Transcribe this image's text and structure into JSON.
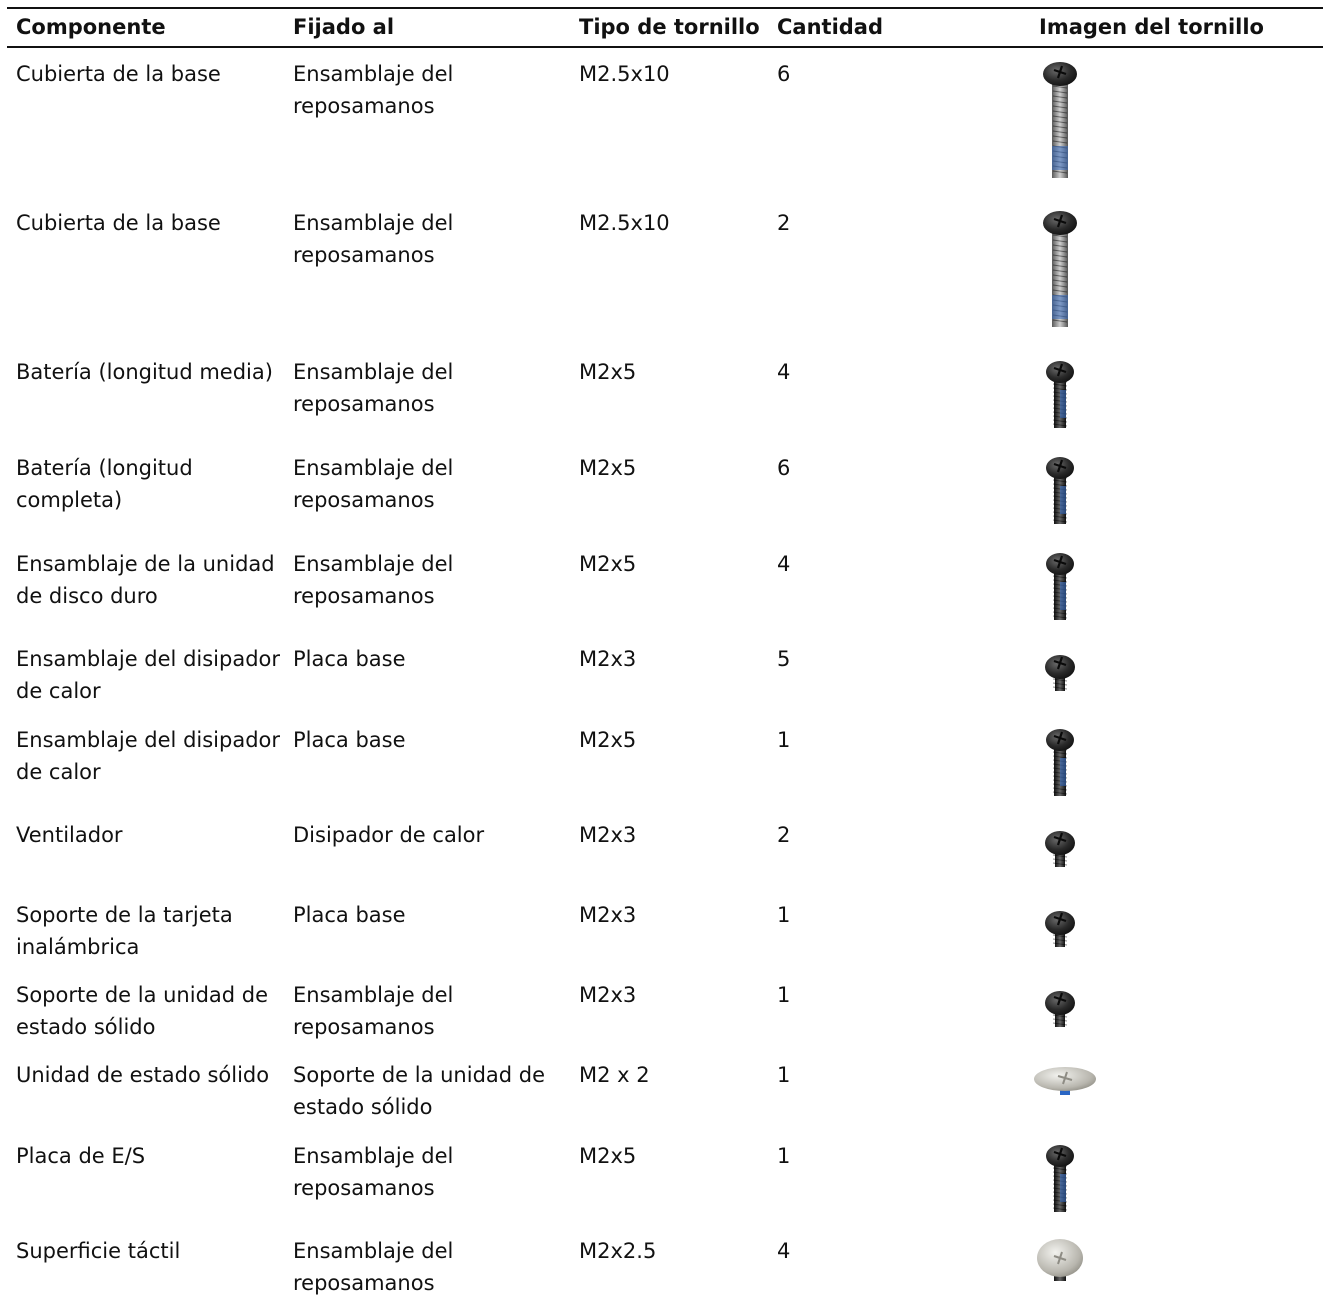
{
  "headers": {
    "componente": "Componente",
    "fijado": "Fijado al",
    "tipo": "Tipo de tornillo",
    "cantidad": "Cantidad",
    "imagen": "Imagen del tornillo"
  },
  "rows": [
    {
      "componente": "Cubierta de la base",
      "fijado": "Ensamblaje del reposamanos",
      "tipo": "M2.5x10",
      "cantidad": "6",
      "icon": "screw-long-icon"
    },
    {
      "componente": "Cubierta de la base",
      "fijado": "Ensamblaje del reposamanos",
      "tipo": "M2.5x10",
      "cantidad": "2",
      "icon": "screw-long-icon"
    },
    {
      "componente": "Batería (longitud media)",
      "fijado": "Ensamblaje del reposamanos",
      "tipo": "M2x5",
      "cantidad": "4",
      "icon": "screw-medium-icon"
    },
    {
      "componente": "Batería (longitud completa)",
      "fijado": "Ensamblaje del reposamanos",
      "tipo": "M2x5",
      "cantidad": "6",
      "icon": "screw-medium-icon"
    },
    {
      "componente": "Ensamblaje de la unidad de disco duro",
      "fijado": "Ensamblaje del reposamanos",
      "tipo": "M2x5",
      "cantidad": "4",
      "icon": "screw-medium-icon"
    },
    {
      "componente": "Ensamblaje del disipador de calor",
      "fijado": "Placa base",
      "tipo": "M2x3",
      "cantidad": "5",
      "icon": "screw-short-icon"
    },
    {
      "componente": "Ensamblaje del disipador de calor",
      "fijado": "Placa base",
      "tipo": "M2x5",
      "cantidad": "1",
      "icon": "screw-medium-icon"
    },
    {
      "componente": "Ventilador",
      "fijado": "Disipador de calor",
      "tipo": "M2x3",
      "cantidad": "2",
      "icon": "screw-short-icon"
    },
    {
      "componente": "Soporte de la tarjeta inalámbrica",
      "fijado": "Placa base",
      "tipo": "M2x3",
      "cantidad": "1",
      "icon": "screw-short-icon"
    },
    {
      "componente": "Soporte de la unidad de estado sólido",
      "fijado": "Ensamblaje del reposamanos",
      "tipo": "M2x3",
      "cantidad": "1",
      "icon": "screw-short-icon"
    },
    {
      "componente": "Unidad de estado sólido",
      "fijado": "Soporte de la unidad de estado sólido",
      "tipo": "M2 x 2",
      "cantidad": "1",
      "icon": "screw-flat-silver-icon"
    },
    {
      "componente": "Placa de E/S",
      "fijado": "Ensamblaje del reposamanos",
      "tipo": "M2x5",
      "cantidad": "1",
      "icon": "screw-medium-icon"
    },
    {
      "componente": "Superficie táctil",
      "fijado": "Ensamblaje del reposamanos",
      "tipo": "M2x2.5",
      "cantidad": "4",
      "icon": "screw-round-silver-icon"
    }
  ]
}
